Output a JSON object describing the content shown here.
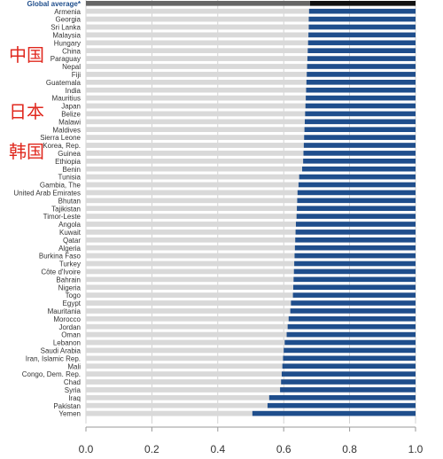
{
  "overlay": {
    "label_1": "中国",
    "label_2": "日本",
    "label_3": "韩国"
  },
  "chart_data": {
    "type": "bar",
    "orientation": "horizontal",
    "title": "",
    "xlabel": "",
    "ylabel": "",
    "xlim": [
      0.0,
      1.0
    ],
    "xticks": [
      "0.0",
      "0.2",
      "0.4",
      "0.6",
      "0.8",
      "1.0"
    ],
    "grid": true,
    "colors": {
      "bar": "#1f4e8c",
      "background_bar": "#d9d9d9",
      "global_bar": "#666666",
      "global_label": "#1f4e8c",
      "overlay": "#e0281e"
    },
    "global_average": {
      "label": "Global average*",
      "value": 0.68
    },
    "categories": [
      "Armenia",
      "Georgia",
      "Sri Lanka",
      "Malaysia",
      "Hungary",
      "China",
      "Paraguay",
      "Nepal",
      "Fiji",
      "Guatemala",
      "India",
      "Mauritius",
      "Japan",
      "Belize",
      "Malawi",
      "Maldives",
      "Sierra Leone",
      "Korea, Rep.",
      "Guinea",
      "Ethiopia",
      "Benin",
      "Tunisia",
      "Gambia, The",
      "United Arab Emirates",
      "Bhutan",
      "Tajikistan",
      "Timor-Leste",
      "Angola",
      "Kuwait",
      "Qatar",
      "Algeria",
      "Burkina Faso",
      "Turkey",
      "Côte d'Ivoire",
      "Bahrain",
      "Nigeria",
      "Togo",
      "Egypt",
      "Mauritania",
      "Morocco",
      "Jordan",
      "Oman",
      "Lebanon",
      "Saudi Arabia",
      "Iran, Islamic Rep.",
      "Mali",
      "Congo, Dem. Rep.",
      "Chad",
      "Syria",
      "Iraq",
      "Pakistan",
      "Yemen"
    ],
    "values": [
      0.677,
      0.676,
      0.676,
      0.675,
      0.674,
      0.673,
      0.672,
      0.671,
      0.67,
      0.669,
      0.668,
      0.667,
      0.666,
      0.665,
      0.664,
      0.663,
      0.662,
      0.661,
      0.66,
      0.659,
      0.656,
      0.647,
      0.645,
      0.642,
      0.641,
      0.64,
      0.639,
      0.637,
      0.636,
      0.635,
      0.634,
      0.633,
      0.632,
      0.631,
      0.63,
      0.629,
      0.628,
      0.622,
      0.62,
      0.615,
      0.612,
      0.609,
      0.603,
      0.6,
      0.598,
      0.596,
      0.594,
      0.592,
      0.589,
      0.556,
      0.551,
      0.505
    ]
  }
}
